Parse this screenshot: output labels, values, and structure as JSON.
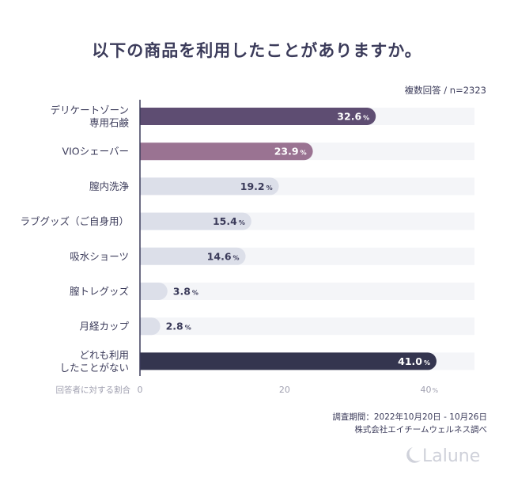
{
  "chart_data": {
    "type": "bar",
    "orientation": "horizontal",
    "title": "以下の商品を利用したことがありますか。",
    "note": "複数回答 / n=2323",
    "categories": [
      [
        "デリケートゾーン",
        "専用石鹸"
      ],
      [
        "VIOシェーバー"
      ],
      [
        "膣内洗浄"
      ],
      [
        "ラブグッズ（ご自身用）"
      ],
      [
        "吸水ショーツ"
      ],
      [
        "膣トレグッズ"
      ],
      [
        "月経カップ"
      ],
      [
        "どれも利用",
        "したことがない"
      ]
    ],
    "values": [
      32.6,
      23.9,
      19.2,
      15.4,
      14.6,
      3.8,
      2.8,
      41.0
    ],
    "value_labels": [
      "32.6",
      "23.9",
      "19.2",
      "15.4",
      "14.6",
      "3.8",
      "2.8",
      "41.0"
    ],
    "unit": "%",
    "bar_colors": [
      "#5e4d72",
      "#9a7392",
      "#dcdfe9",
      "#dcdfe9",
      "#dcdfe9",
      "#dcdfe9",
      "#dcdfe9",
      "#34354f"
    ],
    "label_inside": [
      true,
      true,
      true,
      true,
      true,
      false,
      false,
      true
    ],
    "xlim": [
      0,
      45
    ],
    "xticks": [
      0,
      20,
      40
    ],
    "xtick_labels": [
      "0",
      "20",
      "40"
    ],
    "xlabel": "回答者に対する割合",
    "grid": false,
    "legend": "none"
  },
  "source": {
    "period": "調査期間：2022年10月20日 - 10月26日",
    "org": "株式会社エイチームウェルネス調べ"
  },
  "logo": {
    "text": "Lalune"
  },
  "colors": {
    "text": "#3b3b5a",
    "track": "#f4f5f8",
    "axis": "#3b3b5a",
    "tick": "#a0a0b0"
  }
}
